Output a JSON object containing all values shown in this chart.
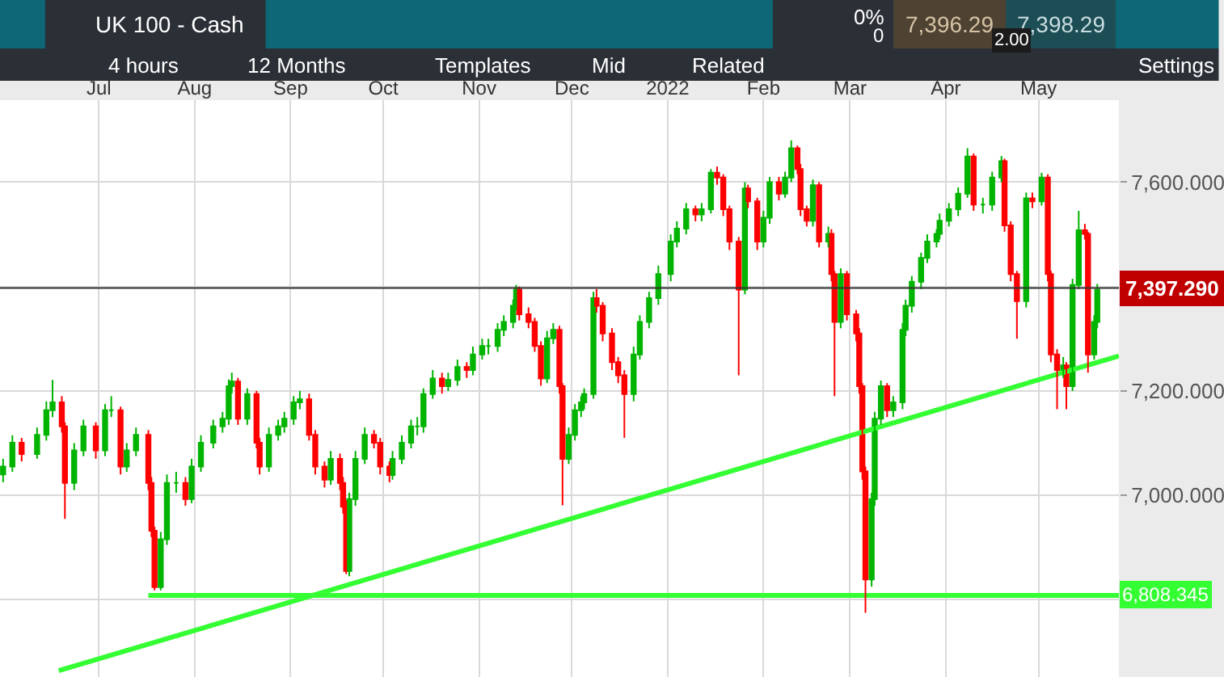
{
  "chart_data": {
    "type": "candlestick",
    "title": "UK 100 - Cash",
    "colors": [
      "#00b400",
      "#00b400",
      "#ff0000",
      "#00b400",
      "#00b400",
      "#00b400",
      "#ff0000",
      "#ff0000",
      "#00b400",
      "#00b400",
      "#ff0000",
      "#00b400",
      "#00b400",
      "#ff0000",
      "#00b400",
      "#00b400",
      "#ff0000",
      "#ff0000",
      "#ff0000",
      "#00b400",
      "#00b400",
      "#00b400",
      "#ff0000",
      "#00b400",
      "#00b400",
      "#00b400",
      "#00b400",
      "#00b400",
      "#00b400",
      "#ff0000",
      "#00b400",
      "#ff0000",
      "#ff0000",
      "#00b400",
      "#00b400",
      "#00b400",
      "#00b400",
      "#00b400",
      "#ff0000",
      "#ff0000",
      "#ff0000",
      "#00b400",
      "#ff0000",
      "#ff0000",
      "#ff0000",
      "#00b400",
      "#00b400",
      "#00b400",
      "#ff0000",
      "#ff0000",
      "#ff0000",
      "#00b400",
      "#00b400",
      "#00b400",
      "#00b400",
      "#00b400",
      "#00b400",
      "#ff0000",
      "#00b400",
      "#00b400",
      "#ff0000",
      "#00b400",
      "#00b400",
      "#00b400",
      "#00b400",
      "#00b400",
      "#00b400",
      "#00b400",
      "#ff0000",
      "#ff0000",
      "#ff0000",
      "#ff0000",
      "#00b400",
      "#00b400",
      "#ff0000",
      "#ff0000",
      "#00b400",
      "#00b400",
      "#00b400",
      "#00b400",
      "#00b400",
      "#ff0000",
      "#ff0000",
      "#ff0000",
      "#ff0000",
      "#ff0000",
      "#00b400",
      "#00b400",
      "#00b400",
      "#00b400",
      "#00b400",
      "#00b400",
      "#00b400",
      "#ff0000",
      "#00b400",
      "#00b400",
      "#ff0000",
      "#ff0000",
      "#ff0000",
      "#ff0000",
      "#00b400",
      "#ff0000",
      "#ff0000",
      "#00b400",
      "#00b400",
      "#ff0000",
      "#00b400",
      "#00b400",
      "#ff0000",
      "#ff0000",
      "#ff0000",
      "#00b400",
      "#ff0000",
      "#00b400",
      "#ff0000",
      "#ff0000",
      "#00b400",
      "#ff0000",
      "#ff0000",
      "#ff0000",
      "#ff0000",
      "#ff0000",
      "#00b400",
      "#00b400",
      "#00b400",
      "#ff0000",
      "#00b400",
      "#00b400",
      "#00b400",
      "#00b400",
      "#00b400",
      "#00b400",
      "#00b400",
      "#00b400",
      "#00b400",
      "#00b400",
      "#00b400",
      "#ff0000",
      "#00b400",
      "#00b400",
      "#00b400",
      "#ff0000",
      "#ff0000",
      "#ff0000",
      "#00b400",
      "#ff0000",
      "#00b400",
      "#ff0000",
      "#ff0000",
      "#ff0000",
      "#00b400",
      "#ff0000",
      "#00b400",
      "#00b400",
      "#ff0000",
      "#ff0000",
      "#00b400",
      "#00b400"
    ],
    "x": [
      "2021-05-31",
      "2021-06-03",
      "2021-06-06",
      "2021-06-11",
      "2021-06-14",
      "2021-06-16",
      "2021-06-19",
      "2021-06-20",
      "2021-06-23",
      "2021-06-26",
      "2021-06-30",
      "2021-07-03",
      "2021-07-05",
      "2021-07-08",
      "2021-07-10",
      "2021-07-13",
      "2021-07-17",
      "2021-07-18",
      "2021-07-19",
      "2021-07-21",
      "2021-07-23",
      "2021-07-26",
      "2021-07-29",
      "2021-07-31",
      "2021-08-03",
      "2021-08-07",
      "2021-08-10",
      "2021-08-12",
      "2021-08-13",
      "2021-08-15",
      "2021-08-18",
      "2021-08-21",
      "2021-08-22",
      "2021-08-25",
      "2021-08-28",
      "2021-08-30",
      "2021-09-02",
      "2021-09-04",
      "2021-09-07",
      "2021-09-09",
      "2021-09-12",
      "2021-09-14",
      "2021-09-17",
      "2021-09-18",
      "2021-09-19",
      "2021-09-20",
      "2021-09-22",
      "2021-09-25",
      "2021-09-28",
      "2021-09-30",
      "2021-10-03",
      "2021-10-04",
      "2021-10-07",
      "2021-10-10",
      "2021-10-12",
      "2021-10-14",
      "2021-10-17",
      "2021-10-20",
      "2021-10-22",
      "2021-10-25",
      "2021-10-28",
      "2021-10-30",
      "2021-11-02",
      "2021-11-04",
      "2021-11-07",
      "2021-11-09",
      "2021-11-12",
      "2021-11-13",
      "2021-11-14",
      "2021-11-17",
      "2021-11-19",
      "2021-11-21",
      "2021-11-23",
      "2021-11-25",
      "2021-11-27",
      "2021-11-28",
      "2021-11-30",
      "2021-12-02",
      "2021-12-04",
      "2021-12-05",
      "2021-12-08",
      "2021-12-09",
      "2021-12-11",
      "2021-12-14",
      "2021-12-16",
      "2021-12-18",
      "2021-12-21",
      "2021-12-23",
      "2021-12-26",
      "2021-12-29",
      "2022-01-02",
      "2022-01-04",
      "2022-01-07",
      "2022-01-10",
      "2022-01-12",
      "2022-01-15",
      "2022-01-17",
      "2022-01-19",
      "2022-01-21",
      "2022-01-24",
      "2022-01-26",
      "2022-01-27",
      "2022-01-30",
      "2022-02-01",
      "2022-02-03",
      "2022-02-06",
      "2022-02-08",
      "2022-02-10",
      "2022-02-12",
      "2022-02-13",
      "2022-02-15",
      "2022-02-17",
      "2022-02-19",
      "2022-02-22",
      "2022-02-23",
      "2022-02-24",
      "2022-02-26",
      "2022-02-28",
      "2022-03-03",
      "2022-03-04",
      "2022-03-05",
      "2022-03-06",
      "2022-03-08",
      "2022-03-09",
      "2022-03-11",
      "2022-03-13",
      "2022-03-15",
      "2022-03-18",
      "2022-03-19",
      "2022-03-21",
      "2022-03-24",
      "2022-03-26",
      "2022-03-29",
      "2022-03-30",
      "2022-04-02",
      "2022-04-05",
      "2022-04-08",
      "2022-04-10",
      "2022-04-13",
      "2022-04-16",
      "2022-04-19",
      "2022-04-20",
      "2022-04-22",
      "2022-04-24",
      "2022-04-27",
      "2022-04-29",
      "2022-05-02",
      "2022-05-04",
      "2022-05-05",
      "2022-05-07",
      "2022-05-09",
      "2022-05-10",
      "2022-05-12",
      "2022-05-14",
      "2022-05-16",
      "2022-05-17",
      "2022-05-19",
      "2022-05-20"
    ],
    "ohlc": [
      [
        7040,
        7070,
        7025,
        7055
      ],
      [
        7055,
        7115,
        7045,
        7101
      ],
      [
        7101,
        7110,
        7065,
        7079
      ],
      [
        7079,
        7130,
        7070,
        7116
      ],
      [
        7116,
        7180,
        7105,
        7163
      ],
      [
        7163,
        7221,
        7150,
        7178
      ],
      [
        7178,
        7190,
        7120,
        7132
      ],
      [
        7132,
        7140,
        6955,
        7024
      ],
      [
        7024,
        7100,
        7010,
        7086
      ],
      [
        7086,
        7145,
        7075,
        7132
      ],
      [
        7132,
        7140,
        7070,
        7086
      ],
      [
        7086,
        7175,
        7075,
        7163
      ],
      [
        7163,
        7190,
        7150,
        7163
      ],
      [
        7163,
        7170,
        7040,
        7055
      ],
      [
        7055,
        7100,
        7045,
        7086
      ],
      [
        7086,
        7130,
        7075,
        7116
      ],
      [
        7116,
        7125,
        7010,
        7024
      ],
      [
        7024,
        7035,
        6920,
        6932
      ],
      [
        6932,
        6940,
        6818,
        6824
      ],
      [
        6824,
        6930,
        6818,
        6916
      ],
      [
        6916,
        7040,
        6905,
        7024
      ],
      [
        7024,
        7045,
        7005,
        7024
      ],
      [
        7024,
        7035,
        6980,
        6993
      ],
      [
        6993,
        7070,
        6985,
        7055
      ],
      [
        7055,
        7115,
        7045,
        7101
      ],
      [
        7101,
        7145,
        7090,
        7132
      ],
      [
        7132,
        7160,
        7120,
        7147
      ],
      [
        7147,
        7222,
        7135,
        7209
      ],
      [
        7209,
        7235,
        7195,
        7218
      ],
      [
        7218,
        7225,
        7135,
        7147
      ],
      [
        7147,
        7205,
        7135,
        7194
      ],
      [
        7194,
        7200,
        7090,
        7101
      ],
      [
        7101,
        7110,
        7040,
        7055
      ],
      [
        7055,
        7130,
        7045,
        7116
      ],
      [
        7116,
        7145,
        7105,
        7132
      ],
      [
        7132,
        7160,
        7120,
        7147
      ],
      [
        7147,
        7190,
        7135,
        7178
      ],
      [
        7178,
        7200,
        7165,
        7184
      ],
      [
        7184,
        7195,
        7105,
        7116
      ],
      [
        7116,
        7125,
        7040,
        7055
      ],
      [
        7055,
        7065,
        7015,
        7030
      ],
      [
        7030,
        7085,
        7020,
        7070
      ],
      [
        7070,
        7080,
        7010,
        7024
      ],
      [
        7024,
        7035,
        6965,
        6978
      ],
      [
        6978,
        6990,
        6849,
        6855
      ],
      [
        6855,
        7005,
        6845,
        6993
      ],
      [
        6993,
        7085,
        6980,
        7070
      ],
      [
        7070,
        7130,
        7060,
        7116
      ],
      [
        7116,
        7125,
        7090,
        7101
      ],
      [
        7101,
        7110,
        7040,
        7055
      ],
      [
        7055,
        7065,
        7025,
        7039
      ],
      [
        7039,
        7085,
        7030,
        7070
      ],
      [
        7070,
        7115,
        7060,
        7101
      ],
      [
        7101,
        7145,
        7090,
        7132
      ],
      [
        7132,
        7150,
        7115,
        7132
      ],
      [
        7132,
        7205,
        7120,
        7194
      ],
      [
        7194,
        7240,
        7185,
        7224
      ],
      [
        7224,
        7235,
        7195,
        7209
      ],
      [
        7209,
        7235,
        7200,
        7221
      ],
      [
        7221,
        7260,
        7210,
        7246
      ],
      [
        7246,
        7255,
        7225,
        7240
      ],
      [
        7240,
        7285,
        7230,
        7270
      ],
      [
        7270,
        7300,
        7260,
        7286
      ],
      [
        7286,
        7300,
        7270,
        7286
      ],
      [
        7286,
        7330,
        7275,
        7317
      ],
      [
        7317,
        7345,
        7305,
        7332
      ],
      [
        7332,
        7375,
        7320,
        7363
      ],
      [
        7363,
        7403,
        7355,
        7394
      ],
      [
        7394,
        7400,
        7335,
        7347
      ],
      [
        7347,
        7360,
        7320,
        7332
      ],
      [
        7332,
        7340,
        7275,
        7286
      ],
      [
        7286,
        7295,
        7210,
        7224
      ],
      [
        7224,
        7315,
        7215,
        7301
      ],
      [
        7301,
        7330,
        7290,
        7317
      ],
      [
        7317,
        7325,
        7195,
        7209
      ],
      [
        7209,
        7215,
        6981,
        7070
      ],
      [
        7070,
        7130,
        7060,
        7116
      ],
      [
        7116,
        7175,
        7105,
        7163
      ],
      [
        7163,
        7190,
        7150,
        7178
      ],
      [
        7178,
        7205,
        7165,
        7194
      ],
      [
        7194,
        7390,
        7185,
        7378
      ],
      [
        7378,
        7395,
        7350,
        7363
      ],
      [
        7363,
        7370,
        7295,
        7310
      ],
      [
        7310,
        7320,
        7240,
        7255
      ],
      [
        7255,
        7265,
        7215,
        7230
      ],
      [
        7230,
        7240,
        7110,
        7194
      ],
      [
        7194,
        7285,
        7180,
        7270
      ],
      [
        7270,
        7345,
        7260,
        7332
      ],
      [
        7332,
        7390,
        7320,
        7378
      ],
      [
        7378,
        7440,
        7365,
        7424
      ],
      [
        7424,
        7500,
        7410,
        7486
      ],
      [
        7486,
        7525,
        7475,
        7511
      ],
      [
        7511,
        7560,
        7500,
        7548
      ],
      [
        7548,
        7555,
        7525,
        7538
      ],
      [
        7538,
        7560,
        7525,
        7548
      ],
      [
        7548,
        7625,
        7540,
        7618
      ],
      [
        7618,
        7630,
        7595,
        7609
      ],
      [
        7609,
        7615,
        7535,
        7548
      ],
      [
        7548,
        7555,
        7470,
        7486
      ],
      [
        7486,
        7495,
        7230,
        7394
      ],
      [
        7394,
        7600,
        7385,
        7588
      ],
      [
        7588,
        7595,
        7550,
        7563
      ],
      [
        7563,
        7570,
        7470,
        7486
      ],
      [
        7486,
        7545,
        7475,
        7532
      ],
      [
        7532,
        7610,
        7520,
        7600
      ],
      [
        7600,
        7610,
        7565,
        7578
      ],
      [
        7578,
        7620,
        7570,
        7609
      ],
      [
        7609,
        7680,
        7600,
        7665
      ],
      [
        7665,
        7670,
        7615,
        7625
      ],
      [
        7625,
        7635,
        7535,
        7548
      ],
      [
        7548,
        7555,
        7515,
        7526
      ],
      [
        7526,
        7605,
        7515,
        7594
      ],
      [
        7594,
        7600,
        7475,
        7486
      ],
      [
        7486,
        7515,
        7475,
        7501
      ],
      [
        7501,
        7510,
        7410,
        7424
      ],
      [
        7424,
        7430,
        7190,
        7332
      ],
      [
        7332,
        7435,
        7320,
        7424
      ],
      [
        7424,
        7430,
        7335,
        7347
      ],
      [
        7347,
        7355,
        7295,
        7310
      ],
      [
        7310,
        7320,
        7195,
        7209
      ],
      [
        7209,
        7215,
        7030,
        7046
      ],
      [
        7046,
        7055,
        6775,
        6839
      ],
      [
        6839,
        7005,
        6825,
        6993
      ],
      [
        6993,
        7160,
        6980,
        7147
      ],
      [
        7147,
        7220,
        7135,
        7209
      ],
      [
        7209,
        7215,
        7150,
        7163
      ],
      [
        7163,
        7190,
        7150,
        7178
      ],
      [
        7178,
        7330,
        7165,
        7317
      ],
      [
        7317,
        7375,
        7305,
        7363
      ],
      [
        7363,
        7420,
        7350,
        7409
      ],
      [
        7409,
        7465,
        7395,
        7455
      ],
      [
        7455,
        7500,
        7445,
        7486
      ],
      [
        7486,
        7510,
        7475,
        7501
      ],
      [
        7501,
        7540,
        7490,
        7526
      ],
      [
        7526,
        7560,
        7515,
        7548
      ],
      [
        7548,
        7590,
        7535,
        7578
      ],
      [
        7578,
        7665,
        7570,
        7649
      ],
      [
        7649,
        7655,
        7545,
        7557
      ],
      [
        7557,
        7570,
        7540,
        7557
      ],
      [
        7557,
        7620,
        7545,
        7609
      ],
      [
        7609,
        7650,
        7600,
        7640
      ],
      [
        7640,
        7645,
        7505,
        7517
      ],
      [
        7517,
        7525,
        7410,
        7424
      ],
      [
        7424,
        7430,
        7300,
        7372
      ],
      [
        7372,
        7580,
        7360,
        7569
      ],
      [
        7569,
        7580,
        7550,
        7563
      ],
      [
        7563,
        7618,
        7555,
        7609
      ],
      [
        7609,
        7615,
        7410,
        7424
      ],
      [
        7424,
        7430,
        7255,
        7270
      ],
      [
        7270,
        7280,
        7165,
        7240
      ],
      [
        7240,
        7265,
        7225,
        7249
      ],
      [
        7249,
        7255,
        7165,
        7209
      ],
      [
        7209,
        7415,
        7200,
        7403
      ],
      [
        7403,
        7545,
        7395,
        7508
      ],
      [
        7508,
        7520,
        7490,
        7501
      ],
      [
        7501,
        7505,
        7235,
        7270
      ],
      [
        7270,
        7345,
        7260,
        7332
      ],
      [
        7332,
        7405,
        7320,
        7394
      ]
    ],
    "series": [
      {
        "type": "line",
        "color": "#33ff33",
        "x": [
          "2021-06-18",
          "2022-05-27"
        ],
        "values": [
          6664,
          7267
        ]
      },
      {
        "type": "line",
        "color": "#33ff33",
        "x": [
          "2021-07-17",
          "2022-05-27"
        ],
        "values": [
          6808.345,
          6808.345
        ]
      }
    ],
    "xlim": [
      "2021-05-30",
      "2022-05-27"
    ],
    "xticks": [
      {
        "value": "2021-07-01",
        "label": "Jul"
      },
      {
        "value": "2021-08-01",
        "label": "Aug"
      },
      {
        "value": "2021-09-01",
        "label": "Sep"
      },
      {
        "value": "2021-10-01",
        "label": "Oct"
      },
      {
        "value": "2021-11-01",
        "label": "Nov"
      },
      {
        "value": "2021-12-01",
        "label": "Dec"
      },
      {
        "value": "2022-01-01",
        "label": "2022"
      },
      {
        "value": "2022-02-01",
        "label": "Feb"
      },
      {
        "value": "2022-03-01",
        "label": "Mar"
      },
      {
        "value": "2022-04-01",
        "label": "Apr"
      },
      {
        "value": "2022-05-01",
        "label": "May"
      }
    ],
    "ylim": [
      6652,
      7757
    ],
    "yticks": [
      {
        "value": 6800,
        "label": null
      },
      {
        "value": 7000,
        "label": "7,000.000"
      },
      {
        "value": 7200,
        "label": "7,200.000"
      },
      {
        "value": 7400,
        "label": null
      },
      {
        "value": 7600,
        "label": "7,600.000"
      }
    ],
    "grid": true,
    "ref_lines": [
      {
        "axis": "y",
        "value": 7397.29,
        "label": "7,397.290",
        "color": "#333333"
      }
    ],
    "annotations": [
      "0%",
      "0",
      "7,396.29",
      "7,398.29",
      "2.00",
      "4 hours",
      "12 Months",
      "Templates",
      "Mid",
      "Related",
      "Settings",
      "6,808.345"
    ]
  }
}
